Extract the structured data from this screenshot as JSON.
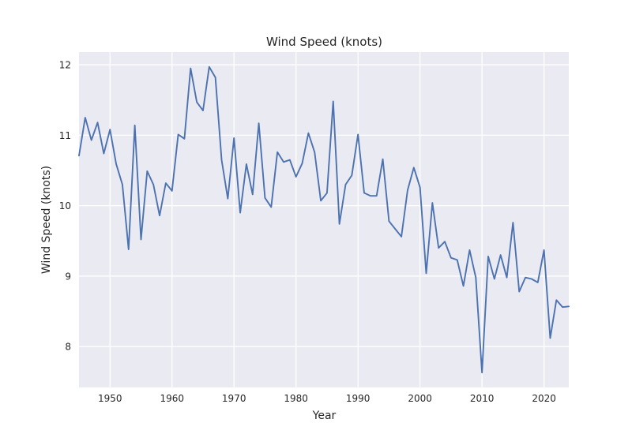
{
  "chart_data": {
    "type": "line",
    "title": "Wind Speed (knots)",
    "xlabel": "Year",
    "ylabel": "Wind Speed (knots)",
    "xlim": [
      1945,
      2024
    ],
    "ylim": [
      7.42,
      12.18
    ],
    "xticks": [
      1950,
      1960,
      1970,
      1980,
      1990,
      2000,
      2010,
      2020
    ],
    "yticks": [
      8,
      9,
      10,
      11,
      12
    ],
    "grid": true,
    "background": "#eaeaf2",
    "line_color": "#4c72b0",
    "series": [
      {
        "x": [
          1945,
          1946,
          1947,
          1948,
          1949,
          1950,
          1951,
          1952,
          1953,
          1954,
          1955,
          1956,
          1957,
          1958,
          1959,
          1960,
          1961,
          1962,
          1963,
          1964,
          1965,
          1966,
          1967,
          1968,
          1969,
          1970,
          1971,
          1972,
          1973,
          1974,
          1975,
          1976,
          1977,
          1978,
          1979,
          1980,
          1981,
          1982,
          1983,
          1984,
          1985,
          1986,
          1987,
          1988,
          1989,
          1990,
          1991,
          1992,
          1993,
          1994,
          1995,
          1996,
          1997,
          1998,
          1999,
          2000,
          2001,
          2002,
          2003,
          2004,
          2005,
          2006,
          2007,
          2008,
          2009,
          2010,
          2011,
          2012,
          2013,
          2014,
          2015,
          2016,
          2017,
          2018,
          2019,
          2020,
          2021,
          2022,
          2023,
          2024
        ],
        "values": [
          10.71,
          11.25,
          10.93,
          11.18,
          10.74,
          11.08,
          10.59,
          10.3,
          9.38,
          11.14,
          9.52,
          10.49,
          10.3,
          9.86,
          10.32,
          10.21,
          11.01,
          10.95,
          11.95,
          11.47,
          11.35,
          11.97,
          11.82,
          10.65,
          10.1,
          10.96,
          9.9,
          10.59,
          10.16,
          11.17,
          10.11,
          9.98,
          10.76,
          10.62,
          10.65,
          10.41,
          10.6,
          11.03,
          10.76,
          10.07,
          10.18,
          11.48,
          9.74,
          10.3,
          10.43,
          11.01,
          10.18,
          10.14,
          10.14,
          10.66,
          9.78,
          9.67,
          9.56,
          10.22,
          10.54,
          10.26,
          9.04,
          10.04,
          9.4,
          9.49,
          9.26,
          9.23,
          8.86,
          9.37,
          8.98,
          7.63,
          9.28,
          8.96,
          9.3,
          8.98,
          9.76,
          8.78,
          8.98,
          8.96,
          8.91,
          9.37,
          8.12,
          8.66,
          8.56,
          8.57
        ]
      }
    ]
  }
}
